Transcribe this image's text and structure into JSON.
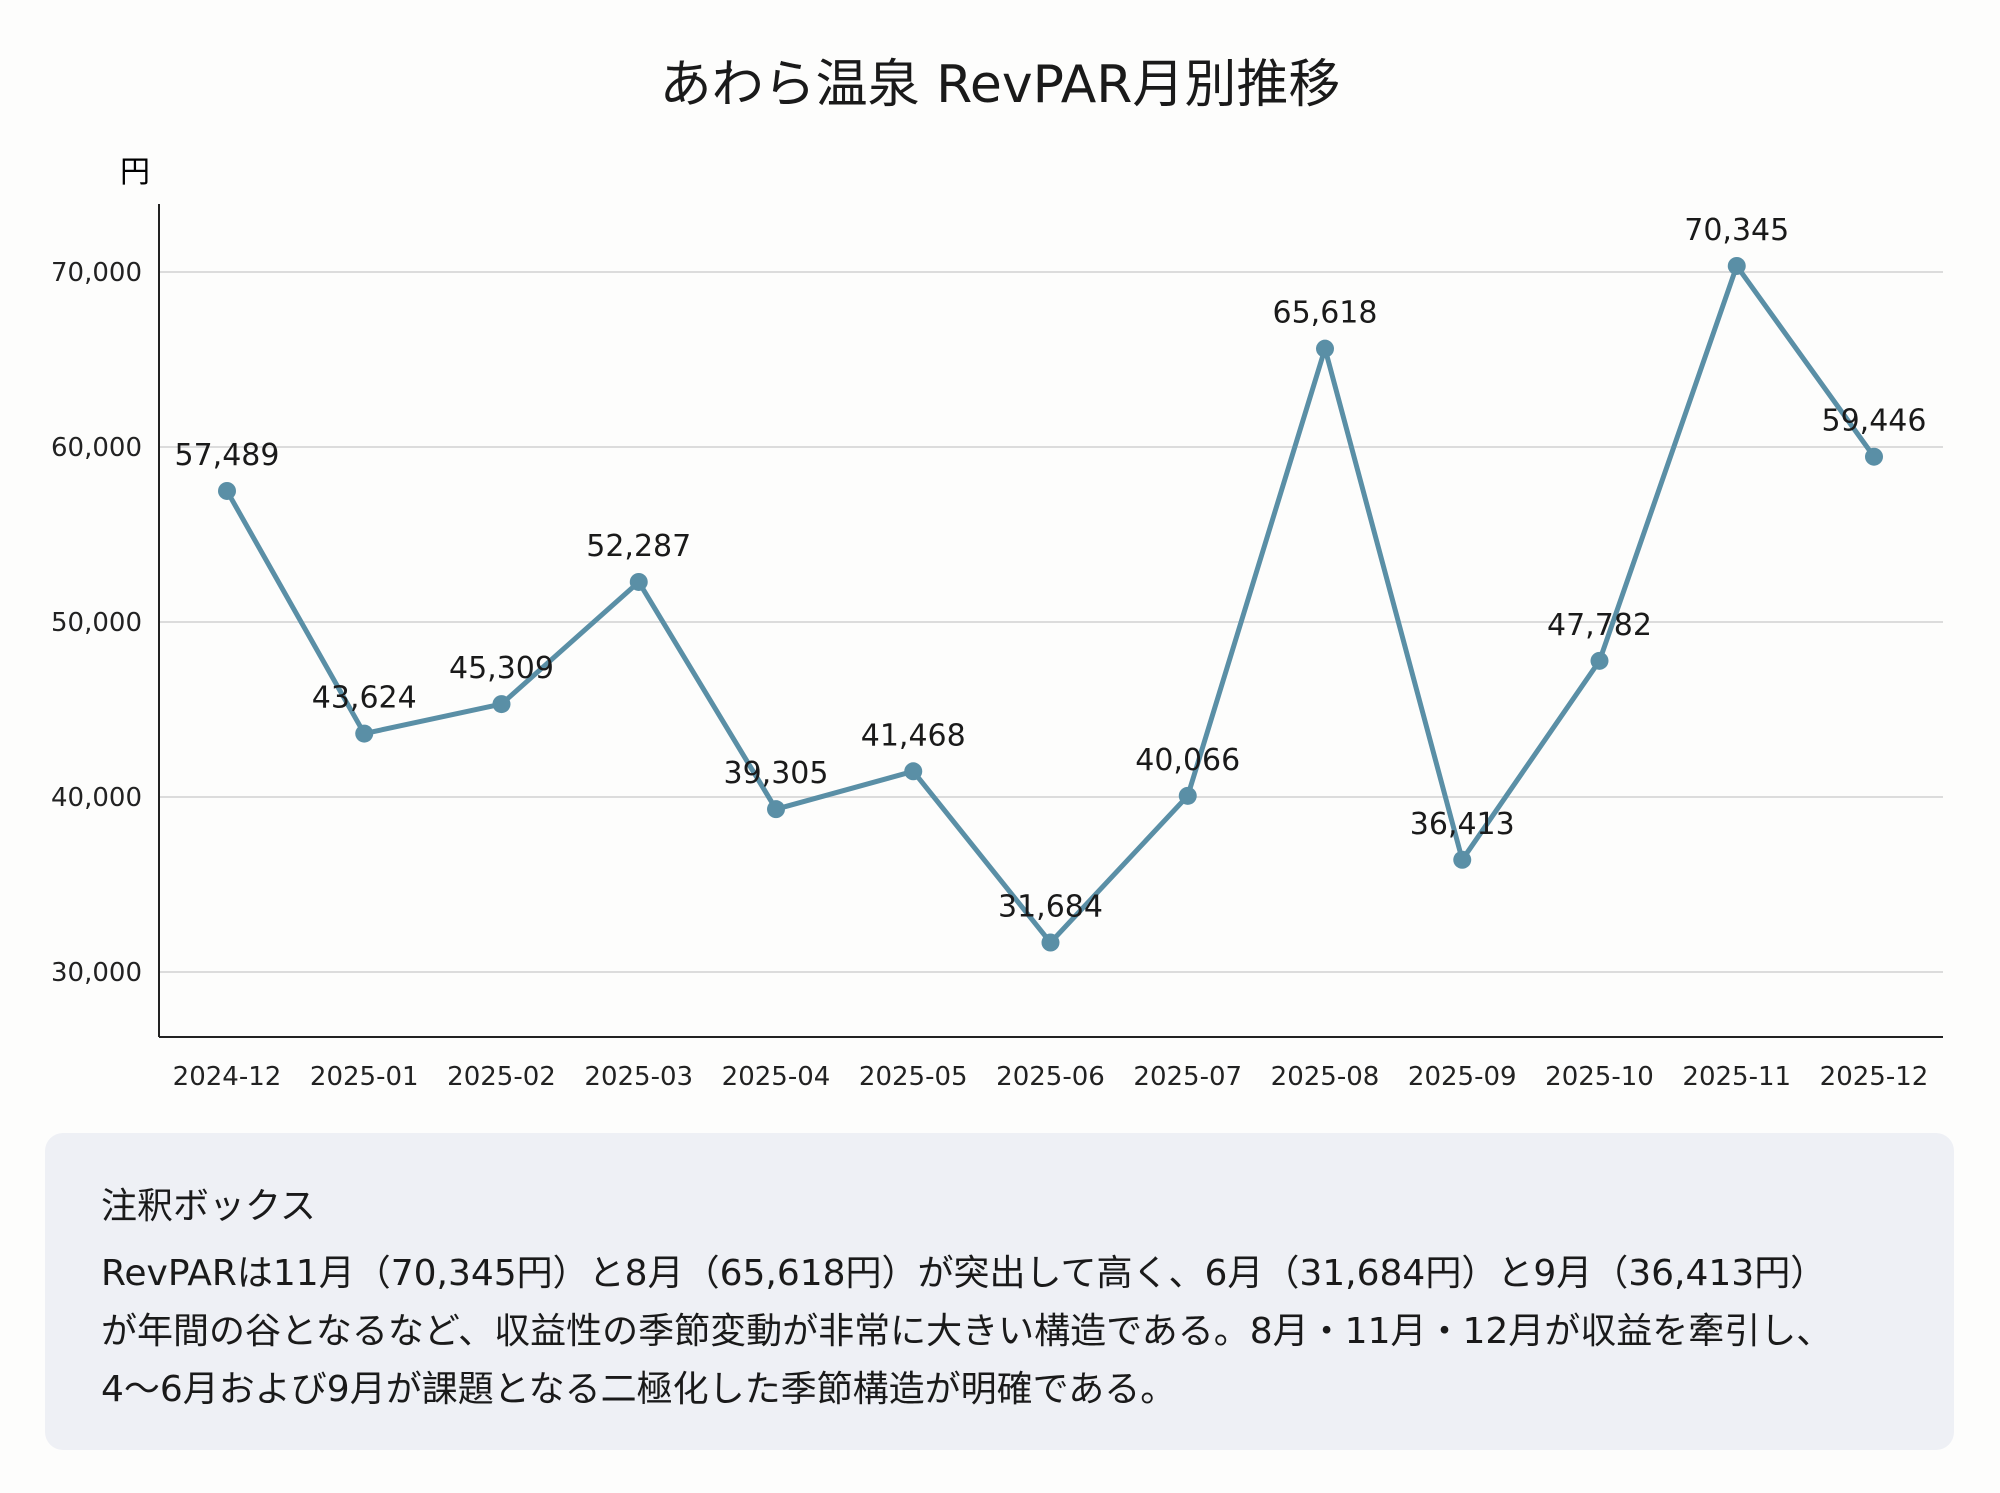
{
  "chart_data": {
    "type": "line",
    "title": "あわら温泉 RevPAR月別推移",
    "ylabel": "円",
    "xlabel": "",
    "categories": [
      "2024-12",
      "2025-01",
      "2025-02",
      "2025-03",
      "2025-04",
      "2025-05",
      "2025-06",
      "2025-07",
      "2025-08",
      "2025-09",
      "2025-10",
      "2025-11",
      "2025-12"
    ],
    "values": [
      57489,
      43624,
      45309,
      52287,
      39305,
      41468,
      31684,
      40066,
      65618,
      36413,
      47782,
      70345,
      59446
    ],
    "data_labels": [
      "57,489",
      "43,624",
      "45,309",
      "52,287",
      "39,305",
      "41,468",
      "31,684",
      "40,066",
      "65,618",
      "36,413",
      "47,782",
      "70,345",
      "59,446"
    ],
    "yticks": [
      30000,
      40000,
      50000,
      60000,
      70000
    ],
    "ytick_labels": [
      "30,000",
      "40,000",
      "50,000",
      "60,000",
      "70,000"
    ],
    "ylim": [
      26300,
      74000
    ],
    "grid": true,
    "line_color": "#5a8fa6"
  },
  "annotation": {
    "title": "注釈ボックス",
    "lines": [
      "RevPARは11月（70,345円）と8月（65,618円）が突出して高く、6月（31,684円）と9月（36,413円）",
      "が年間の谷となるなど、収益性の季節変動が非常に大きい構造である。8月・11月・12月が収益を牽引し、",
      "4〜6月および9月が課題となる二極化した季節構造が明確である。"
    ]
  }
}
